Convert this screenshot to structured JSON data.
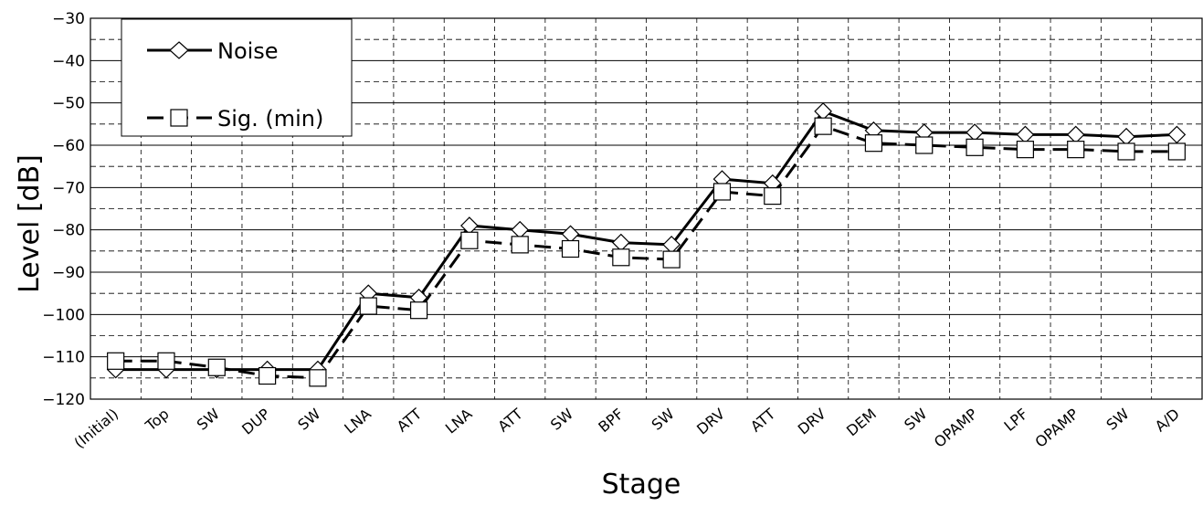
{
  "chart_data": {
    "type": "line",
    "xlabel": "Stage",
    "ylabel": "Level [dB]",
    "ylim": [
      -120,
      -30
    ],
    "yticks": [
      -120,
      -110,
      -100,
      -90,
      -80,
      -70,
      -60,
      -50,
      -40,
      -30
    ],
    "grid": {
      "major": "solid",
      "minor": "dashed",
      "vertical": "dashed"
    },
    "legend_position": "top-left",
    "categories": [
      "(Initial)",
      "Top",
      "SW",
      "DUP",
      "SW",
      "LNA",
      "ATT",
      "LNA",
      "ATT",
      "SW",
      "BPF",
      "SW",
      "DRV",
      "ATT",
      "DRV",
      "DEM",
      "SW",
      "OPAMP",
      "LPF",
      "OPAMP",
      "SW",
      "A/D"
    ],
    "series": [
      {
        "name": "Noise",
        "style": "solid",
        "marker": "diamond",
        "color": "#000000",
        "values": [
          -113,
          -113,
          -113,
          -113,
          -113,
          -95,
          -96,
          -79,
          -80,
          -81,
          -83,
          -83.5,
          -68,
          -69,
          -52,
          -56.5,
          -57,
          -57,
          -57.5,
          -57.5,
          -58,
          -57.5
        ]
      },
      {
        "name": "Sig. (min)",
        "style": "dashed",
        "marker": "square",
        "color": "#000000",
        "values": [
          -111,
          -111,
          -112.5,
          -114.5,
          -115,
          -98,
          -99,
          -82.5,
          -83.5,
          -84.5,
          -86.5,
          -87,
          -71,
          -72,
          -55.5,
          -59.5,
          -60,
          -60.5,
          -61,
          -61,
          -61.5,
          -61.5
        ]
      }
    ]
  }
}
